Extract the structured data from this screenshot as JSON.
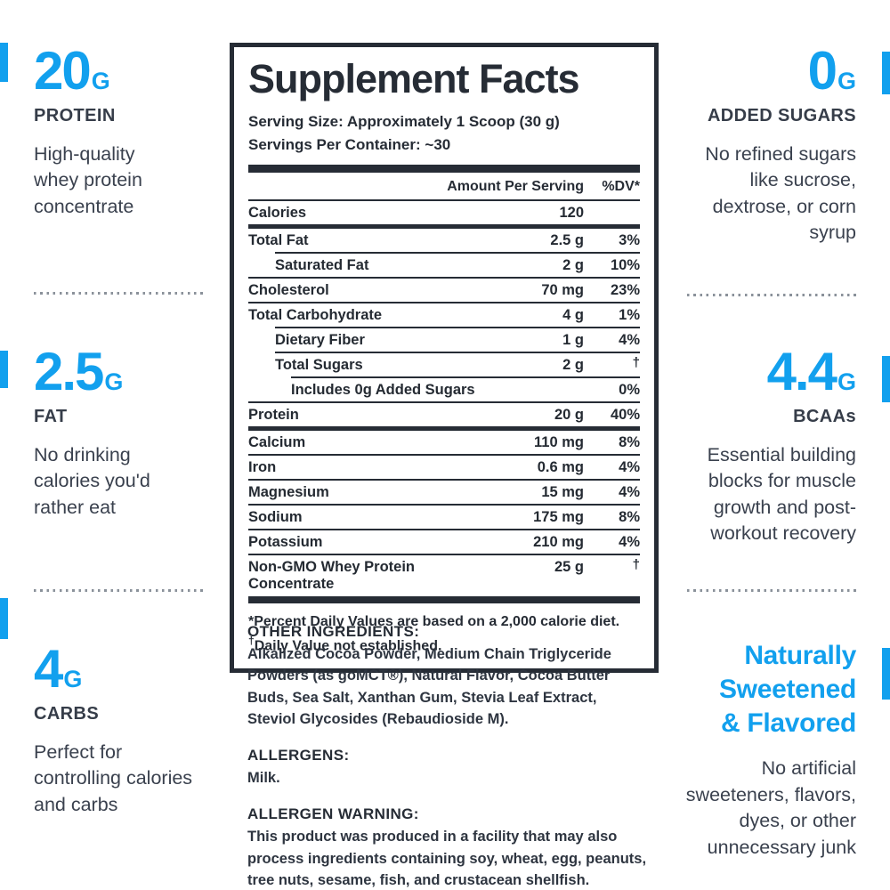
{
  "colors": {
    "accent": "#12A0EE",
    "dark_text": "#262C35",
    "body_text": "#3A414E"
  },
  "callouts": {
    "left": [
      {
        "value": "20",
        "unit": "G",
        "label": "PROTEIN",
        "body": "High-quality\nwhey protein\nconcentrate"
      },
      {
        "value": "2.5",
        "unit": "G",
        "label": "FAT",
        "body": "No drinking\ncalories you'd\nrather eat"
      },
      {
        "value": "4",
        "unit": "G",
        "label": "CARBS",
        "body": "Perfect for\ncontrolling calories\nand carbs"
      }
    ],
    "right": [
      {
        "value": "0",
        "unit": "G",
        "label": "ADDED SUGARS",
        "body": "No refined sugars\nlike sucrose,\ndextrose, or corn\nsyrup"
      },
      {
        "value": "4.4",
        "unit": "G",
        "label": "BCAAs",
        "body": "Essential building\nblocks for muscle\ngrowth and post-\nworkout recovery"
      },
      {
        "heading": "Naturally\nSweetened\n& Flavored",
        "body": "No artificial\nsweeteners, flavors,\ndyes, or other\nunnecessary junk"
      }
    ]
  },
  "facts": {
    "title": "Supplement Facts",
    "serving_size": "Serving Size: Approximately 1 Scoop (30 g)",
    "servings_per_container": "Servings Per Container: ~30",
    "col_amount": "Amount Per Serving",
    "col_dv": "%DV*",
    "rows": [
      {
        "name": "Calories",
        "amount": "120",
        "dv": "",
        "indent": 0,
        "sep": "none",
        "sep_indent": 0
      },
      {
        "name": "Total Fat",
        "amount": "2.5 g",
        "dv": "3%",
        "indent": 0,
        "sep": "thick",
        "sep_indent": 0
      },
      {
        "name": "Saturated Fat",
        "amount": "2 g",
        "dv": "10%",
        "indent": 1,
        "sep": "thin",
        "sep_indent": 30
      },
      {
        "name": "Cholesterol",
        "amount": "70 mg",
        "dv": "23%",
        "indent": 0,
        "sep": "thin",
        "sep_indent": 0
      },
      {
        "name": "Total Carbohydrate",
        "amount": "4 g",
        "dv": "1%",
        "indent": 0,
        "sep": "thin",
        "sep_indent": 0
      },
      {
        "name": "Dietary Fiber",
        "amount": "1 g",
        "dv": "4%",
        "indent": 1,
        "sep": "thin",
        "sep_indent": 30
      },
      {
        "name": "Total Sugars",
        "amount": "2 g",
        "dv": "†",
        "indent": 1,
        "sep": "thin",
        "sep_indent": 30
      },
      {
        "name": "Includes 0g Added Sugars",
        "amount": "",
        "dv": "0%",
        "indent": 2,
        "sep": "thin",
        "sep_indent": 48
      },
      {
        "name": "Protein",
        "amount": "20 g",
        "dv": "40%",
        "indent": 0,
        "sep": "thin",
        "sep_indent": 0
      },
      {
        "name": "Calcium",
        "amount": "110 mg",
        "dv": "8%",
        "indent": 0,
        "sep": "thick",
        "sep_indent": 0
      },
      {
        "name": "Iron",
        "amount": "0.6 mg",
        "dv": "4%",
        "indent": 0,
        "sep": "thin",
        "sep_indent": 0
      },
      {
        "name": "Magnesium",
        "amount": "15 mg",
        "dv": "4%",
        "indent": 0,
        "sep": "thin",
        "sep_indent": 0
      },
      {
        "name": "Sodium",
        "amount": "175 mg",
        "dv": "8%",
        "indent": 0,
        "sep": "thin",
        "sep_indent": 0
      },
      {
        "name": "Potassium",
        "amount": "210 mg",
        "dv": "4%",
        "indent": 0,
        "sep": "thin",
        "sep_indent": 0
      },
      {
        "name": "Non-GMO Whey Protein Concentrate",
        "amount": "25 g",
        "dv": "†",
        "indent": 0,
        "sep": "thin",
        "sep_indent": 0
      }
    ],
    "footnote1": "*Percent Daily Values are based on a 2,000 calorie diet.",
    "footnote2_dagger": "†",
    "footnote2": "Daily Value not established."
  },
  "sections": {
    "other_ingredients": {
      "heading": "OTHER INGREDIENTS:",
      "body": "Alkalized Cocoa Powder, Medium Chain Triglyceride Powders (as goMCT®), Natural Flavor, Cocoa Butter Buds, Sea Salt, Xanthan Gum, Stevia Leaf Extract, Steviol Glycosides (Rebaudioside M)."
    },
    "allergens": {
      "heading": "ALLERGENS:",
      "body": "Milk."
    },
    "allergen_warning": {
      "heading": "ALLERGEN WARNING:",
      "body": "This product was produced in a facility that may also process ingredients containing soy, wheat, egg, peanuts, tree nuts, sesame, fish, and crustacean shellfish."
    }
  }
}
